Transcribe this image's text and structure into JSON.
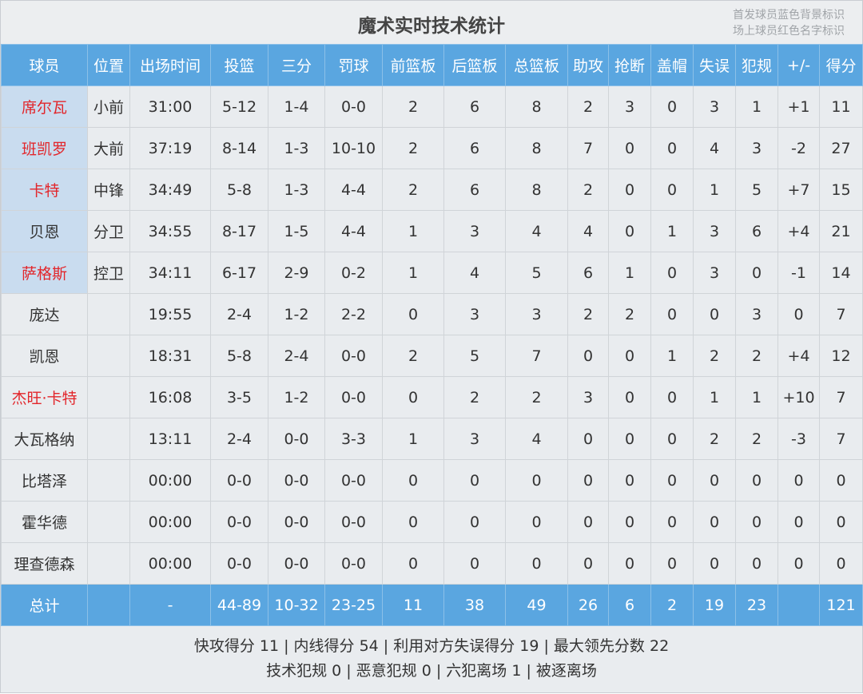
{
  "title": "魔术实时技术统计",
  "legend": [
    "首发球员蓝色背景标识",
    "场上球员红色名字标识"
  ],
  "colors": {
    "header_bg": "#5aa6e0",
    "starter_bg": "#c9dcef",
    "on_court_name": "#e2262b",
    "body_bg": "#e9ecef"
  },
  "columns": [
    "球员",
    "位置",
    "出场时间",
    "投篮",
    "三分",
    "罚球",
    "前篮板",
    "后篮板",
    "总篮板",
    "助攻",
    "抢断",
    "盖帽",
    "失误",
    "犯规",
    "+/-",
    "得分"
  ],
  "players": [
    {
      "starter": true,
      "on_court": true,
      "cells": [
        "席尔瓦",
        "小前",
        "31:00",
        "5-12",
        "1-4",
        "0-0",
        "2",
        "6",
        "8",
        "2",
        "3",
        "0",
        "3",
        "1",
        "+1",
        "11"
      ]
    },
    {
      "starter": true,
      "on_court": true,
      "cells": [
        "班凯罗",
        "大前",
        "37:19",
        "8-14",
        "1-3",
        "10-10",
        "2",
        "6",
        "8",
        "7",
        "0",
        "0",
        "4",
        "3",
        "-2",
        "27"
      ]
    },
    {
      "starter": true,
      "on_court": true,
      "cells": [
        "卡特",
        "中锋",
        "34:49",
        "5-8",
        "1-3",
        "4-4",
        "2",
        "6",
        "8",
        "2",
        "0",
        "0",
        "1",
        "5",
        "+7",
        "15"
      ]
    },
    {
      "starter": true,
      "on_court": false,
      "cells": [
        "贝恩",
        "分卫",
        "34:55",
        "8-17",
        "1-5",
        "4-4",
        "1",
        "3",
        "4",
        "4",
        "0",
        "1",
        "3",
        "6",
        "+4",
        "21"
      ]
    },
    {
      "starter": true,
      "on_court": true,
      "cells": [
        "萨格斯",
        "控卫",
        "34:11",
        "6-17",
        "2-9",
        "0-2",
        "1",
        "4",
        "5",
        "6",
        "1",
        "0",
        "3",
        "0",
        "-1",
        "14"
      ]
    },
    {
      "starter": false,
      "on_court": false,
      "cells": [
        "庞达",
        "",
        "19:55",
        "2-4",
        "1-2",
        "2-2",
        "0",
        "3",
        "3",
        "2",
        "2",
        "0",
        "0",
        "3",
        "0",
        "7"
      ]
    },
    {
      "starter": false,
      "on_court": false,
      "cells": [
        "凯恩",
        "",
        "18:31",
        "5-8",
        "2-4",
        "0-0",
        "2",
        "5",
        "7",
        "0",
        "0",
        "1",
        "2",
        "2",
        "+4",
        "12"
      ]
    },
    {
      "starter": false,
      "on_court": true,
      "cells": [
        "杰旺·卡特",
        "",
        "16:08",
        "3-5",
        "1-2",
        "0-0",
        "0",
        "2",
        "2",
        "3",
        "0",
        "0",
        "1",
        "1",
        "+10",
        "7"
      ]
    },
    {
      "starter": false,
      "on_court": false,
      "cells": [
        "大瓦格纳",
        "",
        "13:11",
        "2-4",
        "0-0",
        "3-3",
        "1",
        "3",
        "4",
        "0",
        "0",
        "0",
        "2",
        "2",
        "-3",
        "7"
      ]
    },
    {
      "starter": false,
      "on_court": false,
      "cells": [
        "比塔泽",
        "",
        "00:00",
        "0-0",
        "0-0",
        "0-0",
        "0",
        "0",
        "0",
        "0",
        "0",
        "0",
        "0",
        "0",
        "0",
        "0"
      ]
    },
    {
      "starter": false,
      "on_court": false,
      "cells": [
        "霍华德",
        "",
        "00:00",
        "0-0",
        "0-0",
        "0-0",
        "0",
        "0",
        "0",
        "0",
        "0",
        "0",
        "0",
        "0",
        "0",
        "0"
      ]
    },
    {
      "starter": false,
      "on_court": false,
      "cells": [
        "理查德森",
        "",
        "00:00",
        "0-0",
        "0-0",
        "0-0",
        "0",
        "0",
        "0",
        "0",
        "0",
        "0",
        "0",
        "0",
        "0",
        "0"
      ]
    }
  ],
  "totals": [
    "总计",
    "",
    "-",
    "44-89",
    "10-32",
    "23-25",
    "11",
    "38",
    "49",
    "26",
    "6",
    "2",
    "19",
    "23",
    "",
    "121"
  ],
  "footer": [
    "快攻得分 11 | 内线得分 54 | 利用对方失误得分 19 | 最大领先分数 22",
    "技术犯规 0 | 恶意犯规 0 | 六犯离场 1 | 被逐离场"
  ]
}
